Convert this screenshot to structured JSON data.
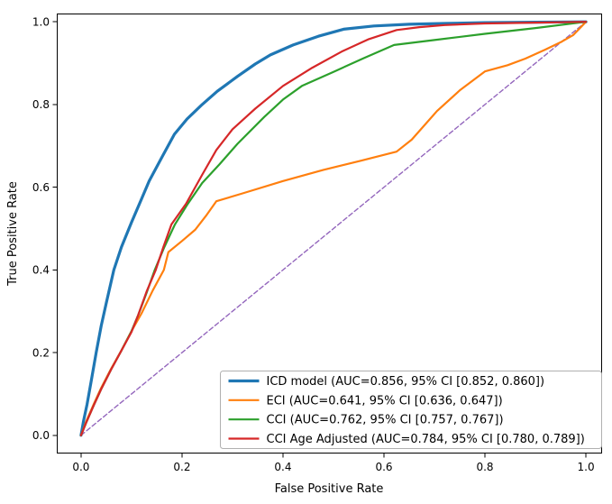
{
  "chart_data": {
    "type": "line",
    "title": "",
    "xlabel": "False Positive Rate",
    "ylabel": "True Positive Rate",
    "xlim": [
      -0.048,
      1.032
    ],
    "ylim": [
      -0.044,
      1.02
    ],
    "xticks": [
      0.0,
      0.2,
      0.4,
      0.6,
      0.8,
      1.0
    ],
    "yticks": [
      0.0,
      0.2,
      0.4,
      0.6,
      0.8,
      1.0
    ],
    "grid": false,
    "legend_position": "lower right",
    "axis_color": "#000000",
    "background_color": "#ffffff",
    "legend_border_color": "#b0b0b0",
    "series": [
      {
        "id": "icd-model",
        "name": "ICD model (AUC=0.856, 95% CI [0.852, 0.860])",
        "auc": 0.856,
        "ci_low": 0.852,
        "ci_high": 0.86,
        "color": "#1f77b4",
        "line_width": 3.2,
        "dash": null,
        "in_legend": true,
        "points": [
          [
            0,
            0
          ],
          [
            0.005,
            0.035
          ],
          [
            0.012,
            0.075
          ],
          [
            0.02,
            0.13
          ],
          [
            0.03,
            0.2
          ],
          [
            0.04,
            0.265
          ],
          [
            0.05,
            0.32
          ],
          [
            0.065,
            0.4
          ],
          [
            0.08,
            0.455
          ],
          [
            0.1,
            0.515
          ],
          [
            0.12,
            0.572
          ],
          [
            0.135,
            0.615
          ],
          [
            0.16,
            0.672
          ],
          [
            0.185,
            0.728
          ],
          [
            0.21,
            0.765
          ],
          [
            0.24,
            0.8
          ],
          [
            0.27,
            0.832
          ],
          [
            0.31,
            0.868
          ],
          [
            0.345,
            0.898
          ],
          [
            0.375,
            0.92
          ],
          [
            0.42,
            0.944
          ],
          [
            0.47,
            0.965
          ],
          [
            0.52,
            0.982
          ],
          [
            0.58,
            0.99
          ],
          [
            0.65,
            0.994
          ],
          [
            0.72,
            0.996
          ],
          [
            0.8,
            0.998
          ],
          [
            0.9,
            0.999
          ],
          [
            1,
            1
          ]
        ]
      },
      {
        "id": "eci",
        "name": "ECI (AUC=0.641, 95% CI [0.636, 0.647])",
        "auc": 0.641,
        "ci_low": 0.636,
        "ci_high": 0.647,
        "color": "#ff7f0e",
        "line_width": 2.2,
        "dash": null,
        "in_legend": true,
        "points": [
          [
            0,
            0
          ],
          [
            0.01,
            0.033
          ],
          [
            0.025,
            0.075
          ],
          [
            0.04,
            0.115
          ],
          [
            0.06,
            0.162
          ],
          [
            0.08,
            0.205
          ],
          [
            0.1,
            0.252
          ],
          [
            0.12,
            0.295
          ],
          [
            0.142,
            0.35
          ],
          [
            0.164,
            0.4
          ],
          [
            0.173,
            0.443
          ],
          [
            0.2,
            0.47
          ],
          [
            0.226,
            0.497
          ],
          [
            0.247,
            0.53
          ],
          [
            0.268,
            0.566
          ],
          [
            0.32,
            0.585
          ],
          [
            0.4,
            0.615
          ],
          [
            0.48,
            0.642
          ],
          [
            0.554,
            0.664
          ],
          [
            0.625,
            0.686
          ],
          [
            0.655,
            0.715
          ],
          [
            0.705,
            0.784
          ],
          [
            0.75,
            0.834
          ],
          [
            0.8,
            0.88
          ],
          [
            0.845,
            0.895
          ],
          [
            0.88,
            0.911
          ],
          [
            0.92,
            0.933
          ],
          [
            0.952,
            0.952
          ],
          [
            0.975,
            0.968
          ],
          [
            1,
            1
          ]
        ]
      },
      {
        "id": "cci",
        "name": "CCI (AUC=0.762, 95% CI [0.757, 0.767])",
        "auc": 0.762,
        "ci_low": 0.757,
        "ci_high": 0.767,
        "color": "#2ca02c",
        "line_width": 2.2,
        "dash": null,
        "in_legend": true,
        "points": [
          [
            0,
            0
          ],
          [
            0.01,
            0.03
          ],
          [
            0.025,
            0.072
          ],
          [
            0.04,
            0.112
          ],
          [
            0.06,
            0.16
          ],
          [
            0.08,
            0.205
          ],
          [
            0.1,
            0.252
          ],
          [
            0.113,
            0.29
          ],
          [
            0.13,
            0.345
          ],
          [
            0.146,
            0.4
          ],
          [
            0.165,
            0.455
          ],
          [
            0.186,
            0.51
          ],
          [
            0.21,
            0.557
          ],
          [
            0.24,
            0.61
          ],
          [
            0.274,
            0.655
          ],
          [
            0.31,
            0.705
          ],
          [
            0.363,
            0.77
          ],
          [
            0.4,
            0.812
          ],
          [
            0.4375,
            0.845
          ],
          [
            0.5,
            0.879
          ],
          [
            0.56,
            0.912
          ],
          [
            0.62,
            0.944
          ],
          [
            0.7,
            0.956
          ],
          [
            0.8,
            0.971
          ],
          [
            0.9,
            0.985
          ],
          [
            1,
            1
          ]
        ]
      },
      {
        "id": "cci-age-adjusted",
        "name": "CCI Age Adjusted (AUC=0.784, 95% CI [0.780, 0.789])",
        "auc": 0.784,
        "ci_low": 0.78,
        "ci_high": 0.789,
        "color": "#d62728",
        "line_width": 2.2,
        "dash": null,
        "in_legend": true,
        "points": [
          [
            0,
            0
          ],
          [
            0.01,
            0.03
          ],
          [
            0.025,
            0.072
          ],
          [
            0.04,
            0.112
          ],
          [
            0.06,
            0.16
          ],
          [
            0.08,
            0.205
          ],
          [
            0.1,
            0.25
          ],
          [
            0.113,
            0.29
          ],
          [
            0.13,
            0.348
          ],
          [
            0.148,
            0.4
          ],
          [
            0.163,
            0.455
          ],
          [
            0.179,
            0.51
          ],
          [
            0.208,
            0.56
          ],
          [
            0.24,
            0.63
          ],
          [
            0.268,
            0.69
          ],
          [
            0.3,
            0.74
          ],
          [
            0.345,
            0.79
          ],
          [
            0.4,
            0.845
          ],
          [
            0.458,
            0.889
          ],
          [
            0.518,
            0.929
          ],
          [
            0.57,
            0.958
          ],
          [
            0.625,
            0.98
          ],
          [
            0.67,
            0.987
          ],
          [
            0.72,
            0.992
          ],
          [
            0.8,
            0.996
          ],
          [
            0.9,
            0.998
          ],
          [
            1,
            1
          ]
        ]
      },
      {
        "id": "chance-diagonal",
        "name": "chance-diagonal",
        "color": "#9467bd",
        "line_width": 1.4,
        "dash": [
          5,
          3
        ],
        "in_legend": false,
        "points": [
          [
            0,
            0
          ],
          [
            1,
            1
          ]
        ]
      }
    ]
  }
}
